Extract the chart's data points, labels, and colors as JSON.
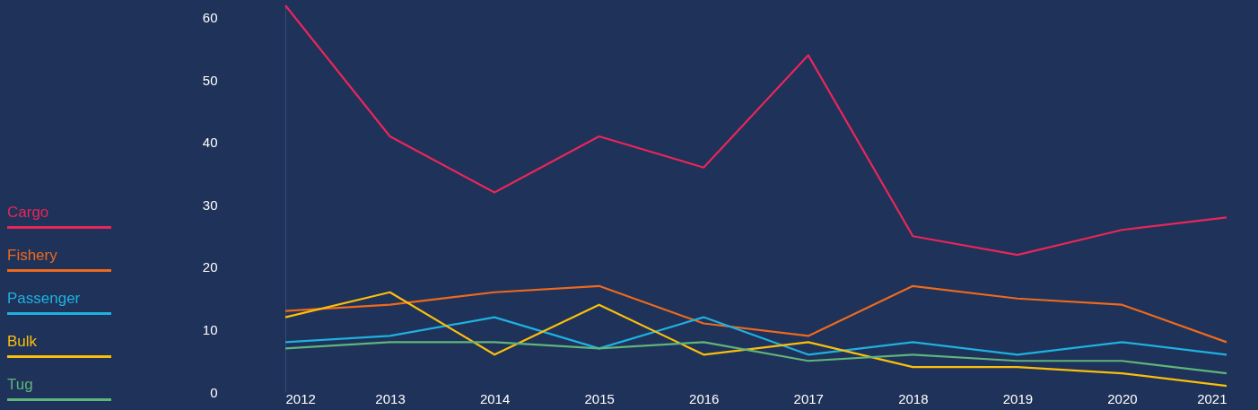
{
  "chart_data": {
    "type": "line",
    "x": [
      2012,
      2013,
      2014,
      2015,
      2016,
      2017,
      2018,
      2019,
      2020,
      2021
    ],
    "xlim": [
      2012,
      2021
    ],
    "xticks": [
      2012,
      2013,
      2014,
      2015,
      2016,
      2017,
      2018,
      2019,
      2020,
      2021
    ],
    "ylim": [
      0,
      62
    ],
    "yticks": [
      0,
      10,
      20,
      30,
      40,
      50,
      60
    ],
    "grid": false,
    "legend": "left",
    "marker": "none",
    "line_style": "solid",
    "series": [
      {
        "name": "Cargo",
        "color": "#e8265a",
        "values": [
          62,
          41,
          32,
          41,
          36,
          54,
          25,
          22,
          26,
          28
        ]
      },
      {
        "name": "Fishery",
        "color": "#ee6a1d",
        "values": [
          13,
          14,
          16,
          17,
          11,
          9,
          17,
          15,
          14,
          8
        ]
      },
      {
        "name": "Passenger",
        "color": "#1fb1e0",
        "values": [
          8,
          9,
          12,
          7,
          12,
          6,
          8,
          6,
          8,
          6
        ]
      },
      {
        "name": "Bulk",
        "color": "#fbbf0b",
        "values": [
          12,
          16,
          6,
          14,
          6,
          8,
          4,
          4,
          3,
          1
        ]
      },
      {
        "name": "Tug",
        "color": "#5fb57c",
        "values": [
          7,
          8,
          8,
          7,
          8,
          5,
          6,
          5,
          5,
          3
        ]
      }
    ]
  }
}
